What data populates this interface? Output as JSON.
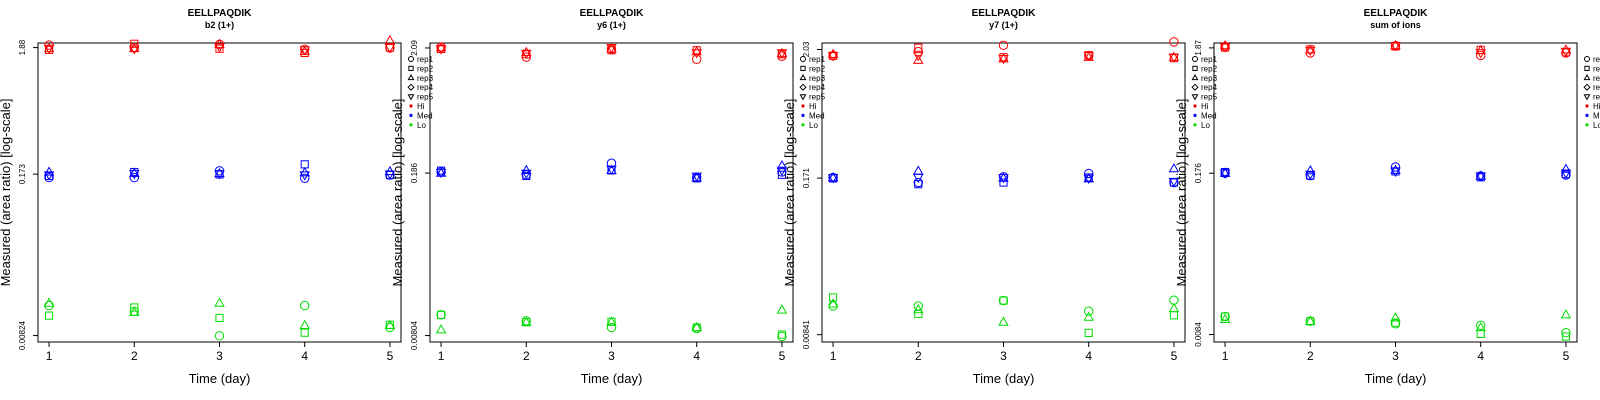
{
  "chart_data": [
    {
      "type": "scatter",
      "title": "EELLPAQDIK",
      "subtitle": "b2 (1+)",
      "xlabel": "Time (day)",
      "ylabel": "Measured (area ratio) [log-scale]",
      "x_ticks": [
        1,
        2,
        3,
        4,
        5
      ],
      "y_ticks": [
        {
          "value": 0.00824,
          "label": "0.00824"
        },
        {
          "value": 0.173,
          "label": "0.173"
        },
        {
          "value": 1.88,
          "label": "1.88"
        }
      ],
      "ylim": [
        0.0073,
        2.05
      ],
      "log_y": true,
      "grid": false,
      "series": [
        {
          "name": "rep1",
          "level": "Hi",
          "values": [
            1.97,
            1.88,
            2.0,
            1.82,
            1.87
          ]
        },
        {
          "name": "rep2",
          "level": "Hi",
          "values": [
            1.8,
            2.02,
            1.84,
            1.7,
            1.88
          ]
        },
        {
          "name": "rep3",
          "level": "Hi",
          "values": [
            1.85,
            1.85,
            2.0,
            1.75,
            2.15
          ]
        },
        {
          "name": "rep5",
          "level": "Hi",
          "values": [
            1.85,
            1.83,
            1.9,
            1.8,
            1.88
          ]
        },
        {
          "name": "rep1",
          "level": "Med",
          "values": [
            0.162,
            0.162,
            0.184,
            0.16,
            0.17
          ]
        },
        {
          "name": "rep2",
          "level": "Med",
          "values": [
            0.167,
            0.18,
            0.172,
            0.208,
            0.17
          ]
        },
        {
          "name": "rep3",
          "level": "Med",
          "values": [
            0.18,
            0.176,
            0.175,
            0.178,
            0.182
          ]
        },
        {
          "name": "rep5",
          "level": "Med",
          "values": [
            0.17,
            0.174,
            0.174,
            0.17,
            0.173
          ]
        },
        {
          "name": "rep1",
          "level": "Lo",
          "values": [
            0.0145,
            0.013,
            0.0082,
            0.0145,
            0.0096
          ]
        },
        {
          "name": "rep2",
          "level": "Lo",
          "values": [
            0.012,
            0.014,
            0.0115,
            0.0087,
            0.0101
          ]
        },
        {
          "name": "rep3",
          "level": "Lo",
          "values": [
            0.0152,
            0.0128,
            0.0152,
            0.01,
            0.01
          ]
        }
      ],
      "legend_position": "right"
    },
    {
      "type": "scatter",
      "title": "EELLPAQDIK",
      "subtitle": "y6 (1+)",
      "xlabel": "Time (day)",
      "ylabel": "Measured (area ratio) [log-scale]",
      "x_ticks": [
        1,
        2,
        3,
        4,
        5
      ],
      "y_ticks": [
        {
          "value": 0.00804,
          "label": "0.00804"
        },
        {
          "value": 0.186,
          "label": "0.186"
        },
        {
          "value": 2.09,
          "label": "2.09"
        }
      ],
      "ylim": [
        0.0071,
        2.3
      ],
      "log_y": true,
      "grid": false,
      "series": [
        {
          "name": "rep1",
          "level": "Hi",
          "values": [
            2.12,
            1.75,
            2.05,
            1.68,
            1.78
          ]
        },
        {
          "name": "rep2",
          "level": "Hi",
          "values": [
            2.05,
            1.85,
            2.0,
            2.0,
            1.85
          ]
        },
        {
          "name": "rep3",
          "level": "Hi",
          "values": [
            2.1,
            1.92,
            2.05,
            1.95,
            1.88
          ]
        },
        {
          "name": "rep5",
          "level": "Hi",
          "values": [
            2.05,
            1.88,
            2.1,
            1.9,
            1.9
          ]
        },
        {
          "name": "rep1",
          "level": "Med",
          "values": [
            0.19,
            0.18,
            0.225,
            0.17,
            0.19
          ]
        },
        {
          "name": "rep2",
          "level": "Med",
          "values": [
            0.195,
            0.176,
            0.196,
            0.168,
            0.18
          ]
        },
        {
          "name": "rep3",
          "level": "Med",
          "values": [
            0.186,
            0.196,
            0.196,
            0.17,
            0.215
          ]
        },
        {
          "name": "rep5",
          "level": "Med",
          "values": [
            0.188,
            0.185,
            0.2,
            0.175,
            0.196
          ]
        },
        {
          "name": "rep1",
          "level": "Lo",
          "values": [
            0.012,
            0.0107,
            0.0094,
            0.0092,
            0.0079
          ]
        },
        {
          "name": "rep2",
          "level": "Lo",
          "values": [
            0.012,
            0.0104,
            0.0105,
            0.0094,
            0.0082
          ]
        },
        {
          "name": "rep3",
          "level": "Lo",
          "values": [
            0.009,
            0.0104,
            0.0105,
            0.0094,
            0.0132
          ]
        }
      ],
      "legend_position": "right"
    },
    {
      "type": "scatter",
      "title": "EELLPAQDIK",
      "subtitle": "y7 (1+)",
      "xlabel": "Time (day)",
      "ylabel": "Measured (area ratio) [log-scale]",
      "x_ticks": [
        1,
        2,
        3,
        4,
        5
      ],
      "y_ticks": [
        {
          "value": 0.00841,
          "label": "0.00841"
        },
        {
          "value": 0.171,
          "label": "0.171"
        },
        {
          "value": 2.03,
          "label": "2.03"
        }
      ],
      "ylim": [
        0.0073,
        2.3
      ],
      "log_y": true,
      "grid": false,
      "series": [
        {
          "name": "rep1",
          "level": "Hi",
          "values": [
            1.8,
            1.95,
            2.2,
            1.8,
            2.35
          ]
        },
        {
          "name": "rep2",
          "level": "Hi",
          "values": [
            1.8,
            2.1,
            1.75,
            1.82,
            1.72
          ]
        },
        {
          "name": "rep3",
          "level": "Hi",
          "values": [
            1.85,
            1.65,
            1.7,
            1.75,
            1.75
          ]
        },
        {
          "name": "rep5",
          "level": "Hi",
          "values": [
            1.8,
            1.8,
            1.7,
            1.8,
            1.75
          ]
        },
        {
          "name": "rep1",
          "level": "Med",
          "values": [
            0.173,
            0.157,
            0.175,
            0.187,
            0.157
          ]
        },
        {
          "name": "rep2",
          "level": "Med",
          "values": [
            0.17,
            0.152,
            0.157,
            0.173,
            0.157
          ]
        },
        {
          "name": "rep3",
          "level": "Med",
          "values": [
            0.172,
            0.196,
            0.171,
            0.169,
            0.205
          ]
        },
        {
          "name": "rep5",
          "level": "Med",
          "values": [
            0.172,
            0.173,
            0.172,
            0.17,
            0.16
          ]
        },
        {
          "name": "rep1",
          "level": "Lo",
          "values": [
            0.0146,
            0.0146,
            0.0162,
            0.0132,
            0.0163
          ]
        },
        {
          "name": "rep2",
          "level": "Lo",
          "values": [
            0.0172,
            0.0125,
            0.0162,
            0.0087,
            0.0122
          ]
        },
        {
          "name": "rep3",
          "level": "Lo",
          "values": [
            0.0152,
            0.0136,
            0.0107,
            0.0118,
            0.0139
          ]
        }
      ],
      "legend_position": "right"
    },
    {
      "type": "scatter",
      "title": "EELLPAQDIK",
      "subtitle": "sum of ions",
      "xlabel": "Time (day)",
      "ylabel": "Measured (area ratio) [log-scale]",
      "x_ticks": [
        1,
        2,
        3,
        4,
        5
      ],
      "y_ticks": [
        {
          "value": 0.0084,
          "label": "0.0084"
        },
        {
          "value": 0.176,
          "label": "0.176"
        },
        {
          "value": 1.87,
          "label": "1.87"
        }
      ],
      "ylim": [
        0.0073,
        2.05
      ],
      "log_y": true,
      "grid": false,
      "series": [
        {
          "name": "rep1",
          "level": "Hi",
          "values": [
            1.92,
            1.7,
            1.95,
            1.62,
            1.7
          ]
        },
        {
          "name": "rep2",
          "level": "Hi",
          "values": [
            1.88,
            1.82,
            1.92,
            1.8,
            1.72
          ]
        },
        {
          "name": "rep3",
          "level": "Hi",
          "values": [
            1.95,
            1.8,
            1.95,
            1.78,
            1.8
          ]
        },
        {
          "name": "rep5",
          "level": "Hi",
          "values": [
            1.9,
            1.78,
            1.95,
            1.7,
            1.75
          ]
        },
        {
          "name": "rep1",
          "level": "Med",
          "values": [
            0.176,
            0.168,
            0.198,
            0.167,
            0.17
          ]
        },
        {
          "name": "rep2",
          "level": "Med",
          "values": [
            0.18,
            0.168,
            0.182,
            0.163,
            0.173
          ]
        },
        {
          "name": "rep3",
          "level": "Med",
          "values": [
            0.176,
            0.185,
            0.186,
            0.167,
            0.19
          ]
        },
        {
          "name": "rep5",
          "level": "Med",
          "values": [
            0.176,
            0.172,
            0.182,
            0.167,
            0.176
          ]
        },
        {
          "name": "rep1",
          "level": "Lo",
          "values": [
            0.0118,
            0.0108,
            0.0103,
            0.01,
            0.0087
          ]
        },
        {
          "name": "rep2",
          "level": "Lo",
          "values": [
            0.0118,
            0.0108,
            0.0105,
            0.0085,
            0.0081
          ]
        },
        {
          "name": "rep3",
          "level": "Lo",
          "values": [
            0.0112,
            0.0108,
            0.0115,
            0.0096,
            0.0122
          ]
        }
      ],
      "legend_position": "right"
    }
  ],
  "legend": {
    "entries": [
      {
        "label": "rep1",
        "symbol": "circle",
        "kind": "shape"
      },
      {
        "label": "rep2",
        "symbol": "square",
        "kind": "shape"
      },
      {
        "label": "rep3",
        "symbol": "triangle-up",
        "kind": "shape"
      },
      {
        "label": "rep4",
        "symbol": "diamond",
        "kind": "shape"
      },
      {
        "label": "rep5",
        "symbol": "triangle-down",
        "kind": "shape"
      },
      {
        "label": "Hi",
        "kind": "color",
        "color": "#ff0000"
      },
      {
        "label": "Med",
        "kind": "color",
        "color": "#0000ff"
      },
      {
        "label": "Lo",
        "kind": "color",
        "color": "#00dd00"
      }
    ]
  },
  "colors": {
    "Hi": "#ff0000",
    "Med": "#0000ff",
    "Lo": "#00dd00"
  },
  "shapes": {
    "rep1": "circle",
    "rep2": "square",
    "rep3": "triangle-up",
    "rep4": "diamond",
    "rep5": "triangle-down"
  }
}
